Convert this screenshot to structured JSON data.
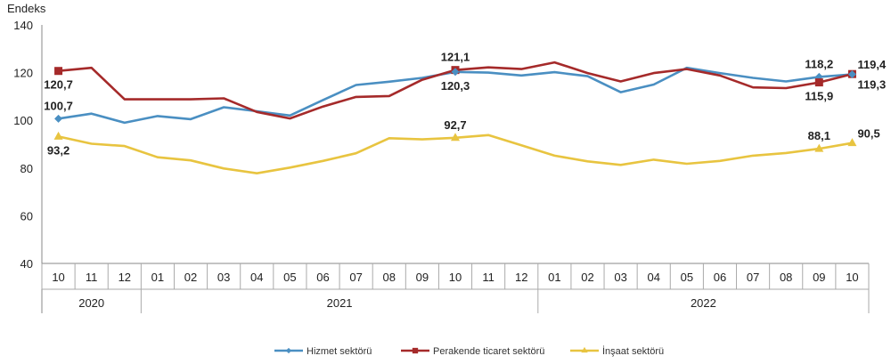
{
  "chart_data": {
    "type": "line",
    "ylabel": "Endeks",
    "ylim": [
      40,
      140
    ],
    "yticks": [
      40,
      60,
      80,
      100,
      120,
      140
    ],
    "grid": false,
    "legend_placement": "bottom",
    "categories": [
      "10",
      "11",
      "12",
      "01",
      "02",
      "03",
      "04",
      "05",
      "06",
      "07",
      "08",
      "09",
      "10",
      "11",
      "12",
      "01",
      "02",
      "03",
      "04",
      "05",
      "06",
      "07",
      "08",
      "09",
      "10"
    ],
    "years": [
      {
        "label": "2020",
        "start": 0,
        "end": 2
      },
      {
        "label": "2021",
        "start": 3,
        "end": 14
      },
      {
        "label": "2022",
        "start": 15,
        "end": 24
      }
    ],
    "series": [
      {
        "name": "Hizmet sektörü",
        "color": "#4a8fc2",
        "marker": "diamond",
        "values": [
          100.7,
          102.8,
          99.0,
          101.8,
          100.5,
          105.5,
          103.8,
          102.0,
          108.5,
          114.8,
          116.2,
          117.8,
          120.3,
          120.0,
          118.8,
          120.2,
          118.5,
          111.8,
          115.0,
          122.0,
          119.8,
          117.8,
          116.3,
          118.2,
          119.3
        ]
      },
      {
        "name": "Perakende ticaret sektörü",
        "color": "#a52a2a",
        "marker": "square",
        "values": [
          120.7,
          122.0,
          108.8,
          108.8,
          108.8,
          109.2,
          103.5,
          100.8,
          105.8,
          109.8,
          110.2,
          117.0,
          121.1,
          122.2,
          121.5,
          124.3,
          119.8,
          116.3,
          119.8,
          121.5,
          118.8,
          113.8,
          113.5,
          115.9,
          119.4
        ]
      },
      {
        "name": "İnşaat sektörü",
        "color": "#e8c440",
        "marker": "triangle",
        "values": [
          93.2,
          90.2,
          89.2,
          84.5,
          83.2,
          79.8,
          77.8,
          80.2,
          83.0,
          86.2,
          92.5,
          92.0,
          92.7,
          93.8,
          89.5,
          85.2,
          82.8,
          81.3,
          83.5,
          81.8,
          83.0,
          85.2,
          86.3,
          88.1,
          90.5
        ]
      }
    ],
    "annotations": [
      {
        "series": 0,
        "index": 0,
        "text": "100,7",
        "pos": "above"
      },
      {
        "series": 1,
        "index": 0,
        "text": "120,7",
        "pos": "below"
      },
      {
        "series": 2,
        "index": 0,
        "text": "93,2",
        "pos": "below"
      },
      {
        "series": 1,
        "index": 12,
        "text": "121,1",
        "pos": "above"
      },
      {
        "series": 0,
        "index": 12,
        "text": "120,3",
        "pos": "below"
      },
      {
        "series": 2,
        "index": 12,
        "text": "92,7",
        "pos": "above"
      },
      {
        "series": 0,
        "index": 23,
        "text": "118,2",
        "pos": "above"
      },
      {
        "series": 1,
        "index": 23,
        "text": "115,9",
        "pos": "below"
      },
      {
        "series": 2,
        "index": 23,
        "text": "88,1",
        "pos": "above"
      },
      {
        "series": 1,
        "index": 24,
        "text": "119,4",
        "pos": "right-up"
      },
      {
        "series": 0,
        "index": 24,
        "text": "119,3",
        "pos": "right-down"
      },
      {
        "series": 2,
        "index": 24,
        "text": "90,5",
        "pos": "right-up"
      }
    ],
    "legend": [
      "Hizmet sektörü",
      "Perakende ticaret sektörü",
      "İnşaat sektörü"
    ]
  }
}
